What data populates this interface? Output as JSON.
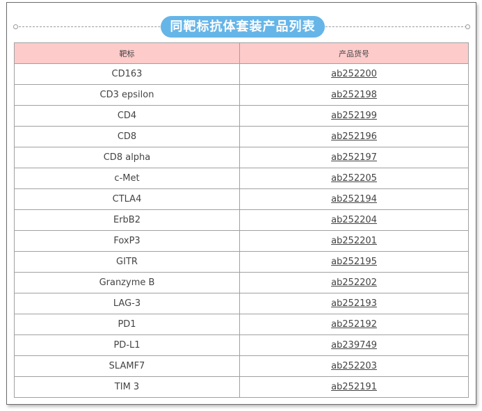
{
  "title": "同靶标抗体套装产品列表",
  "table": {
    "headers": [
      "靶标",
      "产品货号"
    ],
    "rows": [
      [
        "CD163",
        "ab252200"
      ],
      [
        "CD3 epsilon",
        "ab252198"
      ],
      [
        "CD4",
        "ab252199"
      ],
      [
        "CD8",
        "ab252196"
      ],
      [
        "CD8 alpha",
        "ab252197"
      ],
      [
        "c-Met",
        "ab252205"
      ],
      [
        "CTLA4",
        "ab252194"
      ],
      [
        "ErbB2",
        "ab252204"
      ],
      [
        "FoxP3",
        "ab252201"
      ],
      [
        "GITR",
        "ab252195"
      ],
      [
        "Granzyme B",
        "ab252202"
      ],
      [
        "LAG-3",
        "ab252193"
      ],
      [
        "PD1",
        "ab252192"
      ],
      [
        "PD-L1",
        "ab239749"
      ],
      [
        "SLAMF7",
        "ab252203"
      ],
      [
        "TIM 3",
        "ab252191"
      ]
    ]
  },
  "colors": {
    "title_bg": "#66b5e8",
    "header_bg": "#fecbcb"
  }
}
